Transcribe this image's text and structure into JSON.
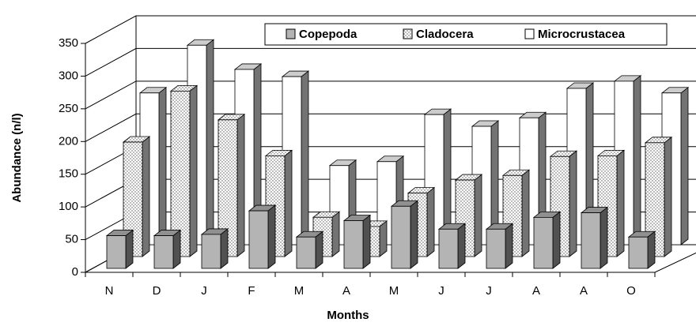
{
  "chart_data": {
    "type": "bar3d",
    "x_label": "Months",
    "y_label": "Abundance (n/l)",
    "categories": [
      "N",
      "D",
      "J",
      "F",
      "M",
      "A",
      "M",
      "J",
      "J",
      "A",
      "A",
      "O"
    ],
    "series": [
      {
        "name": "Copepoda",
        "color": "#b4b4b4",
        "values": [
          50,
          50,
          52,
          88,
          48,
          73,
          95,
          60,
          60,
          78,
          85,
          48
        ]
      },
      {
        "name": "Cladocera",
        "color": "#ffffff",
        "pattern": "dots",
        "values": [
          175,
          253,
          209,
          154,
          60,
          46,
          97,
          117,
          124,
          153,
          154,
          174
        ]
      },
      {
        "name": "Microcrustacea",
        "color": "#ffffff",
        "values": [
          232,
          305,
          268,
          257,
          121,
          127,
          199,
          181,
          194,
          239,
          250,
          232
        ]
      }
    ],
    "ylim": [
      0,
      350
    ],
    "yticks": [
      0,
      50,
      100,
      150,
      200,
      250,
      300,
      350
    ],
    "grid": true,
    "legend": "top"
  }
}
